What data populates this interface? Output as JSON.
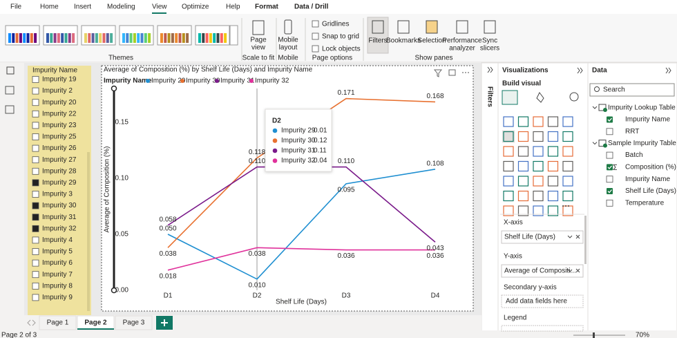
{
  "menu": [
    "File",
    "Home",
    "Insert",
    "Modeling",
    "View",
    "Optimize",
    "Help",
    "Format",
    "Data / Drill"
  ],
  "active_menu": 4,
  "ribbon": {
    "themes": "Themes",
    "page_view": [
      "Page",
      "view"
    ],
    "scale_to_fit": "Scale to fit",
    "mobile_layout": [
      "Mobile",
      "layout"
    ],
    "mobile": "Mobile",
    "options": [
      "Gridlines",
      "Snap to grid",
      "Lock objects"
    ],
    "page_options": "Page options",
    "panes": [
      [
        "Filters"
      ],
      [
        "Bookmarks"
      ],
      [
        "Selection"
      ],
      [
        "Performance",
        "analyzer"
      ],
      [
        "Sync",
        "slicers"
      ]
    ],
    "show_panes": "Show panes"
  },
  "slicer": {
    "title": "Impurity Name",
    "items": [
      {
        "label": "Impurity 19",
        "checked": false
      },
      {
        "label": "Impurity 2",
        "checked": false
      },
      {
        "label": "Impurity 20",
        "checked": false
      },
      {
        "label": "Impurity 22",
        "checked": false
      },
      {
        "label": "Impurity 23",
        "checked": false
      },
      {
        "label": "Impurity 25",
        "checked": false
      },
      {
        "label": "Impurity 26",
        "checked": false
      },
      {
        "label": "Impurity 27",
        "checked": false
      },
      {
        "label": "Impurity 28",
        "checked": false
      },
      {
        "label": "Impurity 29",
        "checked": true
      },
      {
        "label": "Impurity 3",
        "checked": false
      },
      {
        "label": "Impurity 30",
        "checked": true
      },
      {
        "label": "Impurity 31",
        "checked": true
      },
      {
        "label": "Impurity 32",
        "checked": true
      },
      {
        "label": "Impurity 4",
        "checked": false
      },
      {
        "label": "Impurity 5",
        "checked": false
      },
      {
        "label": "Impurity 6",
        "checked": false
      },
      {
        "label": "Impurity 7",
        "checked": false
      },
      {
        "label": "Impurity 8",
        "checked": false
      },
      {
        "label": "Impurity 9",
        "checked": false
      }
    ]
  },
  "chart_data": {
    "type": "line",
    "title": "Average of Composition (%) by Shelf Life (Days) and Impurity Name",
    "legend_title": "Impurity Name",
    "x_label": "Shelf Life (Days)",
    "y_label": "Average of Composition (%)",
    "categories": [
      "D1",
      "D2",
      "D3",
      "D4"
    ],
    "ylim": [
      0,
      0.18
    ],
    "yticks": [
      {
        "value": 0,
        "label": "0.00"
      },
      {
        "value": 0.05,
        "label": "0.05"
      },
      {
        "value": 0.1,
        "label": "0.10"
      },
      {
        "value": 0.15,
        "label": "0.15"
      }
    ],
    "series": [
      {
        "name": "Impurity 29",
        "color": "#1f8fd1",
        "values": [
          0.05,
          0.01,
          0.095,
          0.108
        ],
        "value_labels": [
          "0.050",
          "0.010",
          "0.095",
          "0.108"
        ]
      },
      {
        "name": "Impurity 30",
        "color": "#e8702f",
        "values": [
          0.038,
          0.118,
          0.171,
          0.168
        ],
        "value_labels": [
          "0.038",
          "0.118",
          "0.171",
          "0.168"
        ]
      },
      {
        "name": "Impurity 31",
        "color": "#7a1a8a",
        "values": [
          0.058,
          0.11,
          0.11,
          0.043
        ],
        "value_labels": [
          "0.058",
          "0.110",
          "0.110",
          "0.043"
        ]
      },
      {
        "name": "Impurity 32",
        "color": "#e0319b",
        "values": [
          0.018,
          0.038,
          0.036,
          0.036
        ],
        "value_labels": [
          "0.018",
          "0.038",
          "0.036",
          "0.036"
        ]
      }
    ]
  },
  "tooltip": {
    "title": "D2",
    "rows": [
      {
        "name": "Impurity 29",
        "value": "0.01"
      },
      {
        "name": "Impurity 30",
        "value": "0.12"
      },
      {
        "name": "Impurity 31",
        "value": "0.11"
      },
      {
        "name": "Impurity 32",
        "value": "0.04"
      }
    ]
  },
  "filters": "Filters",
  "visualizations": {
    "title": "Visualizations",
    "build": "Build visual",
    "wells": [
      {
        "label": "X-axis",
        "field": "Shelf Life (Days)"
      },
      {
        "label": "Y-axis",
        "field": "Average of Compositi..."
      },
      {
        "label": "Secondary y-axis",
        "placeholder": "Add data fields here"
      },
      {
        "label": "Legend"
      }
    ]
  },
  "data_pane": {
    "title": "Data",
    "search": "Search",
    "tables": [
      {
        "name": "Impurity Lookup Table",
        "fields": [
          {
            "name": "Impurity Name",
            "checked": true
          },
          {
            "name": "RRT",
            "checked": false
          }
        ]
      },
      {
        "name": "Sample Impurity Table",
        "fields": [
          {
            "name": "Batch",
            "checked": false
          },
          {
            "name": "Composition (%)",
            "checked": true
          },
          {
            "name": "Impurity Name",
            "checked": false
          },
          {
            "name": "Shelf Life (Days)",
            "checked": true
          },
          {
            "name": "Temperature",
            "checked": false
          }
        ]
      }
    ]
  },
  "pages": [
    "Page 1",
    "Page 2",
    "Page 3"
  ],
  "active_page": 1,
  "status": {
    "page": "Page 2 of 3",
    "zoom": "70%"
  }
}
